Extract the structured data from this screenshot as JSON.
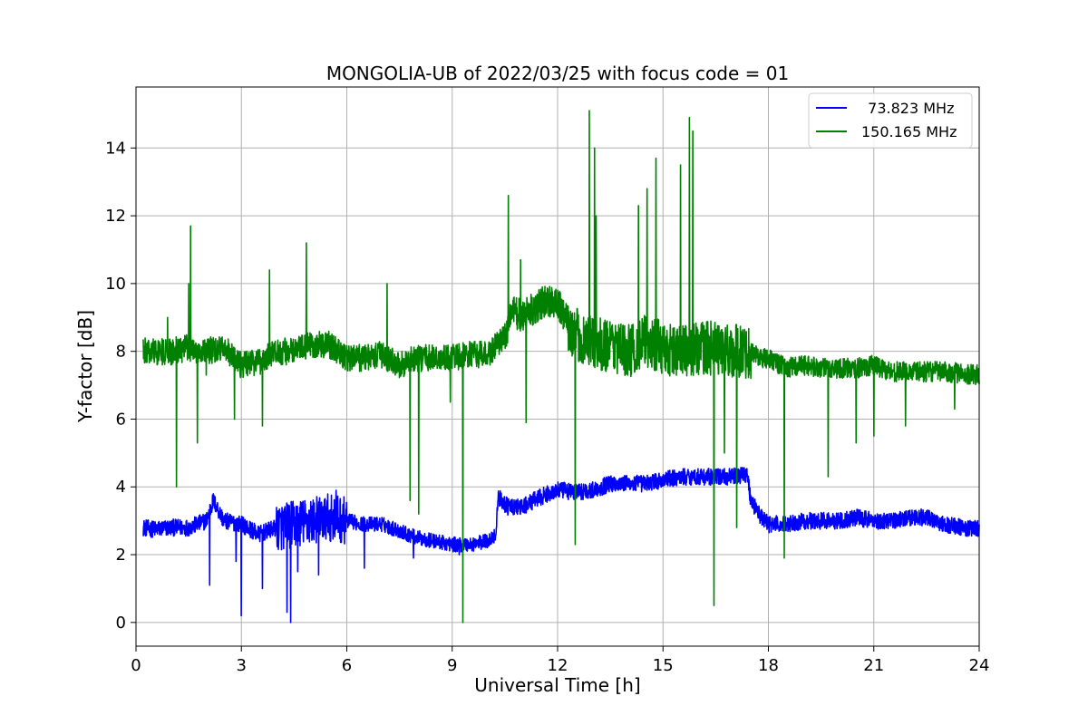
{
  "chart_data": {
    "type": "line",
    "title": "MONGOLIA-UB of 2022/03/25 with focus code = 01",
    "xlabel": "Universal Time [h]",
    "ylabel": "Y-factor [dB]",
    "xlim": [
      0,
      24
    ],
    "ylim": [
      -0.7,
      15.8
    ],
    "xticks": [
      0,
      3,
      6,
      9,
      12,
      15,
      18,
      21,
      24
    ],
    "yticks": [
      0,
      2,
      4,
      6,
      8,
      10,
      12,
      14
    ],
    "grid": true,
    "legend_position": "top-right",
    "series": [
      {
        "name": "73.823 MHz",
        "legend_label": "  73.823 MHz",
        "color": "#0000ff",
        "baseline": [
          [
            0.2,
            2.8
          ],
          [
            0.5,
            2.75
          ],
          [
            1.0,
            2.8
          ],
          [
            1.5,
            2.8
          ],
          [
            2.0,
            3.0
          ],
          [
            2.2,
            3.6
          ],
          [
            2.5,
            3.0
          ],
          [
            3.0,
            2.9
          ],
          [
            3.5,
            2.6
          ],
          [
            4.0,
            2.8
          ],
          [
            4.5,
            2.9
          ],
          [
            5.0,
            3.0
          ],
          [
            5.5,
            3.1
          ],
          [
            6.0,
            3.0
          ],
          [
            6.5,
            2.9
          ],
          [
            7.0,
            2.9
          ],
          [
            7.5,
            2.7
          ],
          [
            8.0,
            2.5
          ],
          [
            8.5,
            2.4
          ],
          [
            9.0,
            2.3
          ],
          [
            9.5,
            2.3
          ],
          [
            10.0,
            2.4
          ],
          [
            10.25,
            2.6
          ],
          [
            10.3,
            3.7
          ],
          [
            10.6,
            3.4
          ],
          [
            11.0,
            3.4
          ],
          [
            11.5,
            3.7
          ],
          [
            12.0,
            3.9
          ],
          [
            12.5,
            3.85
          ],
          [
            13.0,
            3.9
          ],
          [
            13.5,
            4.1
          ],
          [
            14.0,
            4.1
          ],
          [
            14.5,
            4.1
          ],
          [
            15.0,
            4.2
          ],
          [
            15.5,
            4.3
          ],
          [
            16.0,
            4.3
          ],
          [
            16.5,
            4.3
          ],
          [
            17.0,
            4.3
          ],
          [
            17.4,
            4.4
          ],
          [
            17.5,
            3.6
          ],
          [
            17.8,
            3.1
          ],
          [
            18.0,
            2.9
          ],
          [
            18.5,
            2.9
          ],
          [
            19.0,
            3.0
          ],
          [
            19.5,
            3.0
          ],
          [
            20.0,
            3.0
          ],
          [
            20.5,
            3.1
          ],
          [
            21.0,
            3.0
          ],
          [
            21.5,
            3.0
          ],
          [
            22.0,
            3.1
          ],
          [
            22.5,
            3.1
          ],
          [
            23.0,
            2.9
          ],
          [
            23.5,
            2.8
          ],
          [
            24.0,
            2.75
          ]
        ],
        "noise_segments": [
          [
            0.2,
            4.0,
            0.25
          ],
          [
            4.0,
            6.0,
            0.7
          ],
          [
            6.0,
            10.2,
            0.22
          ],
          [
            10.3,
            17.5,
            0.25
          ],
          [
            17.5,
            24.0,
            0.25
          ]
        ],
        "spikes": [
          [
            2.1,
            1.1
          ],
          [
            2.85,
            1.8
          ],
          [
            3.0,
            0.2
          ],
          [
            3.6,
            1.0
          ],
          [
            4.3,
            0.3
          ],
          [
            4.4,
            0.0
          ],
          [
            4.6,
            1.5
          ],
          [
            5.2,
            1.4
          ],
          [
            5.7,
            3.9
          ],
          [
            6.5,
            1.6
          ],
          [
            7.9,
            1.9
          ],
          [
            9.2,
            2.0
          ]
        ]
      },
      {
        "name": "150.165 MHz",
        "legend_label": "150.165 MHz",
        "color": "#008000",
        "baseline": [
          [
            0.2,
            8.0
          ],
          [
            1.0,
            8.0
          ],
          [
            1.5,
            8.1
          ],
          [
            2.0,
            8.0
          ],
          [
            2.5,
            8.1
          ],
          [
            3.0,
            7.6
          ],
          [
            3.5,
            7.7
          ],
          [
            4.0,
            8.0
          ],
          [
            4.5,
            8.0
          ],
          [
            5.0,
            8.2
          ],
          [
            5.5,
            8.2
          ],
          [
            6.0,
            7.8
          ],
          [
            6.5,
            7.8
          ],
          [
            7.0,
            7.9
          ],
          [
            7.5,
            7.6
          ],
          [
            8.0,
            7.8
          ],
          [
            8.5,
            7.8
          ],
          [
            9.0,
            7.8
          ],
          [
            9.5,
            7.9
          ],
          [
            10.0,
            7.9
          ],
          [
            10.5,
            8.4
          ],
          [
            10.7,
            9.2
          ],
          [
            11.0,
            9.0
          ],
          [
            11.5,
            9.4
          ],
          [
            12.0,
            9.5
          ],
          [
            12.3,
            8.8
          ],
          [
            12.5,
            8.5
          ],
          [
            13.0,
            8.2
          ],
          [
            13.5,
            8.2
          ],
          [
            14.0,
            8.0
          ],
          [
            14.5,
            8.3
          ],
          [
            15.0,
            8.1
          ],
          [
            15.5,
            8.0
          ],
          [
            16.0,
            8.1
          ],
          [
            16.5,
            8.1
          ],
          [
            17.0,
            8.0
          ],
          [
            17.5,
            8.0
          ],
          [
            17.8,
            7.8
          ],
          [
            18.0,
            7.8
          ],
          [
            18.5,
            7.5
          ],
          [
            19.0,
            7.6
          ],
          [
            19.5,
            7.5
          ],
          [
            20.0,
            7.5
          ],
          [
            20.5,
            7.5
          ],
          [
            21.0,
            7.6
          ],
          [
            21.5,
            7.4
          ],
          [
            22.0,
            7.4
          ],
          [
            22.5,
            7.4
          ],
          [
            23.0,
            7.4
          ],
          [
            23.5,
            7.35
          ],
          [
            24.0,
            7.3
          ]
        ],
        "noise_segments": [
          [
            0.2,
            10.5,
            0.4
          ],
          [
            10.5,
            12.3,
            0.5
          ],
          [
            12.3,
            17.5,
            0.8
          ],
          [
            17.5,
            24.0,
            0.3
          ]
        ],
        "spikes": [
          [
            0.9,
            9.0
          ],
          [
            1.15,
            4.0
          ],
          [
            1.5,
            10.0
          ],
          [
            1.55,
            11.7
          ],
          [
            1.75,
            5.3
          ],
          [
            2.0,
            7.3
          ],
          [
            2.6,
            7.8
          ],
          [
            2.8,
            6.0
          ],
          [
            3.6,
            5.8
          ],
          [
            3.8,
            10.4
          ],
          [
            4.85,
            11.2
          ],
          [
            7.15,
            10.0
          ],
          [
            7.8,
            3.6
          ],
          [
            8.05,
            3.2
          ],
          [
            8.95,
            6.5
          ],
          [
            9.3,
            0.0
          ],
          [
            10.6,
            12.6
          ],
          [
            10.95,
            10.7
          ],
          [
            11.1,
            5.9
          ],
          [
            12.0,
            9.8
          ],
          [
            12.5,
            2.3
          ],
          [
            12.9,
            15.1
          ],
          [
            13.05,
            14.0
          ],
          [
            13.1,
            12.0
          ],
          [
            14.3,
            12.3
          ],
          [
            14.55,
            12.8
          ],
          [
            14.8,
            13.7
          ],
          [
            15.5,
            13.5
          ],
          [
            15.75,
            14.9
          ],
          [
            15.85,
            14.5
          ],
          [
            16.45,
            0.5
          ],
          [
            16.75,
            5.0
          ],
          [
            17.1,
            2.8
          ],
          [
            18.45,
            1.9
          ],
          [
            19.7,
            4.3
          ],
          [
            20.5,
            5.3
          ],
          [
            21.0,
            5.5
          ],
          [
            21.9,
            5.8
          ],
          [
            23.3,
            6.3
          ]
        ]
      }
    ]
  }
}
